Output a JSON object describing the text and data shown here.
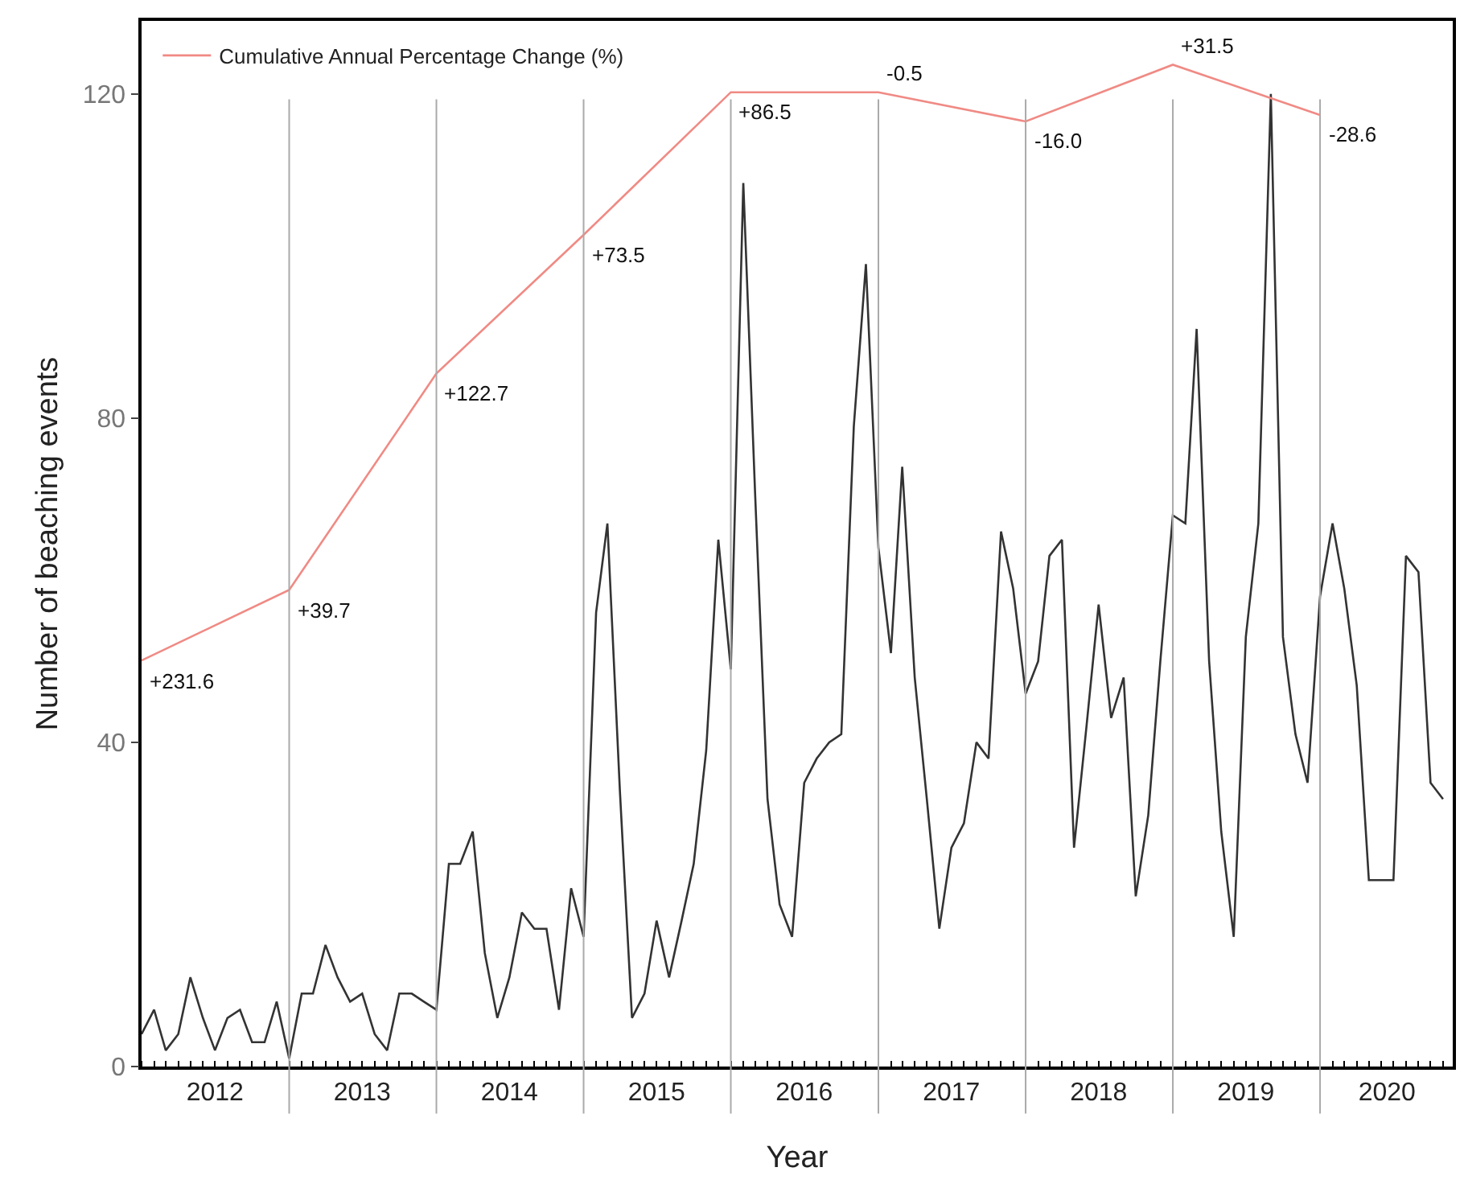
{
  "chart_data": {
    "type": "line",
    "xlabel": "Year",
    "ylabel": "Number of beaching events",
    "xlim": [
      "2012-01-01",
      "2020-11-25"
    ],
    "ylim": [
      0,
      129
    ],
    "xticks": [
      {
        "value": "2012-07-01",
        "label": "2012"
      },
      {
        "value": "2013-07-01",
        "label": "2013"
      },
      {
        "value": "2014-07-01",
        "label": "2014"
      },
      {
        "value": "2015-07-01",
        "label": "2015"
      },
      {
        "value": "2016-07-01",
        "label": "2016"
      },
      {
        "value": "2017-07-01",
        "label": "2017"
      },
      {
        "value": "2018-07-01",
        "label": "2018"
      },
      {
        "value": "2019-07-01",
        "label": "2019"
      },
      {
        "value": "2020-06-15",
        "label": "2020"
      }
    ],
    "yticks": [
      0,
      40,
      80,
      120
    ],
    "legend": "top left",
    "marker": "none",
    "line_style": "solid",
    "series": [
      {
        "color": "#333333",
        "x": [
          "2012-01",
          "2012-02",
          "2012-03",
          "2012-04",
          "2012-05",
          "2012-06",
          "2012-07",
          "2012-08",
          "2012-09",
          "2012-10",
          "2012-11",
          "2012-12",
          "2013-01",
          "2013-02",
          "2013-03",
          "2013-04",
          "2013-05",
          "2013-06",
          "2013-07",
          "2013-08",
          "2013-09",
          "2013-10",
          "2013-11",
          "2013-12",
          "2014-01",
          "2014-02",
          "2014-03",
          "2014-04",
          "2014-05",
          "2014-06",
          "2014-07",
          "2014-08",
          "2014-09",
          "2014-10",
          "2014-11",
          "2014-12",
          "2015-01",
          "2015-02",
          "2015-03",
          "2015-04",
          "2015-05",
          "2015-06",
          "2015-07",
          "2015-08",
          "2015-09",
          "2015-10",
          "2015-11",
          "2015-12",
          "2016-01",
          "2016-02",
          "2016-03",
          "2016-04",
          "2016-05",
          "2016-06",
          "2016-07",
          "2016-08",
          "2016-09",
          "2016-10",
          "2016-11",
          "2016-12",
          "2017-01",
          "2017-02",
          "2017-03",
          "2017-04",
          "2017-05",
          "2017-06",
          "2017-07",
          "2017-08",
          "2017-09",
          "2017-10",
          "2017-11",
          "2017-12",
          "2018-01",
          "2018-02",
          "2018-03",
          "2018-04",
          "2018-05",
          "2018-06",
          "2018-07",
          "2018-08",
          "2018-09",
          "2018-10",
          "2018-11",
          "2018-12",
          "2019-01",
          "2019-02",
          "2019-03",
          "2019-04",
          "2019-05",
          "2019-06",
          "2019-07",
          "2019-08",
          "2019-09",
          "2019-10",
          "2019-11",
          "2019-12",
          "2020-01",
          "2020-02",
          "2020-03",
          "2020-04",
          "2020-05",
          "2020-06",
          "2020-07",
          "2020-08",
          "2020-09",
          "2020-10",
          "2020-11"
        ],
        "values": [
          4,
          7,
          2,
          4,
          11,
          6,
          2,
          6,
          7,
          3,
          3,
          8,
          1,
          9,
          9,
          15,
          11,
          8,
          9,
          4,
          2,
          9,
          9,
          8,
          7,
          25,
          25,
          29,
          14,
          6,
          11,
          19,
          17,
          17,
          7,
          22,
          16,
          56,
          67,
          34,
          6,
          9,
          18,
          11,
          18,
          25,
          39,
          65,
          49,
          109,
          71,
          33,
          20,
          16,
          35,
          38,
          40,
          41,
          79,
          99,
          64,
          51,
          74,
          48,
          33,
          17,
          27,
          30,
          40,
          38,
          66,
          59,
          46,
          50,
          63,
          65,
          27,
          42,
          57,
          43,
          48,
          21,
          31,
          50,
          68,
          67,
          91,
          50,
          29,
          16,
          53,
          67,
          120,
          53,
          41,
          35,
          58,
          67,
          59,
          47,
          23,
          23,
          23,
          63,
          61,
          35,
          33
        ]
      },
      {
        "name": "Cumulative Annual Percentage Change (%)",
        "color": "#f08a84",
        "x": [
          "2012-01",
          "2013-01",
          "2014-01",
          "2015-01",
          "2016-01",
          "2017-01",
          "2018-01",
          "2019-01",
          "2020-01"
        ],
        "values": [
          50.1,
          58.8,
          85.5,
          102.6,
          120.2,
          120.2,
          116.6,
          123.6,
          117.4
        ]
      }
    ],
    "ref_lines": [
      {
        "axis": "x",
        "value": "2013-01-01",
        "color": "#aaaaaa"
      },
      {
        "axis": "x",
        "value": "2014-01-01",
        "color": "#aaaaaa"
      },
      {
        "axis": "x",
        "value": "2015-01-01",
        "color": "#aaaaaa"
      },
      {
        "axis": "x",
        "value": "2016-01-01",
        "color": "#aaaaaa"
      },
      {
        "axis": "x",
        "value": "2017-01-01",
        "color": "#aaaaaa"
      },
      {
        "axis": "x",
        "value": "2018-01-01",
        "color": "#aaaaaa"
      },
      {
        "axis": "x",
        "value": "2019-01-01",
        "color": "#aaaaaa"
      },
      {
        "axis": "x",
        "value": "2020-01-01",
        "color": "#aaaaaa"
      }
    ],
    "annotations": [
      {
        "text": "+231.6",
        "x": "2012-01",
        "y": 50.1
      },
      {
        "text": "+39.7",
        "x": "2013-01",
        "y": 58.8
      },
      {
        "text": "+122.7",
        "x": "2014-01",
        "y": 85.5
      },
      {
        "text": "+73.5",
        "x": "2015-01",
        "y": 102.6
      },
      {
        "text": "+86.5",
        "x": "2016-01",
        "y": 120.2
      },
      {
        "text": "-0.5",
        "x": "2017-01",
        "y": 120.2
      },
      {
        "text": "-16.0",
        "x": "2018-01",
        "y": 116.6
      },
      {
        "text": "+31.5",
        "x": "2019-01",
        "y": 123.6
      },
      {
        "text": "-28.6",
        "x": "2020-01",
        "y": 117.4
      }
    ]
  }
}
